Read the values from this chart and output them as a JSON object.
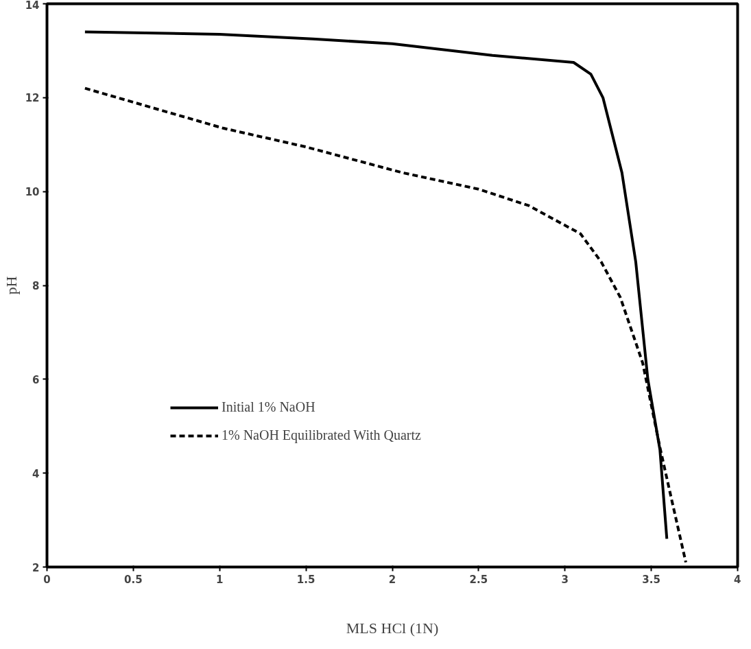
{
  "chart_data": {
    "type": "line",
    "xlabel": "MLS HCl (1N)",
    "ylabel": "pH",
    "xlim": [
      0,
      4
    ],
    "ylim": [
      2,
      14
    ],
    "xticks": [
      0,
      0.5,
      1,
      1.5,
      2,
      2.5,
      3,
      3.5,
      4
    ],
    "yticks": [
      2,
      4,
      6,
      8,
      10,
      12,
      14
    ],
    "grid": false,
    "legend": "bottom left",
    "marker": "none",
    "series": [
      {
        "name": "Initial 1% NaOH",
        "color": "#000000",
        "line_style": "solid",
        "x": [
          0.22,
          1.0,
          1.54,
          2.0,
          2.58,
          3.05,
          3.15,
          3.22,
          3.33,
          3.41,
          3.48,
          3.55,
          3.59
        ],
        "values": [
          13.4,
          13.35,
          13.25,
          13.15,
          12.9,
          12.75,
          12.5,
          12.0,
          10.4,
          8.5,
          6.0,
          4.5,
          2.6
        ]
      },
      {
        "name": "1% NaOH Equilibrated With Quartz",
        "color": "#000000",
        "line_style": "dashed",
        "x": [
          0.22,
          1.02,
          1.5,
          2.06,
          2.5,
          2.79,
          3.09,
          3.21,
          3.32,
          3.45,
          3.55,
          3.62,
          3.7
        ],
        "values": [
          12.2,
          11.35,
          10.95,
          10.4,
          10.05,
          9.7,
          9.1,
          8.5,
          7.75,
          6.35,
          4.55,
          3.4,
          2.1
        ]
      }
    ]
  }
}
